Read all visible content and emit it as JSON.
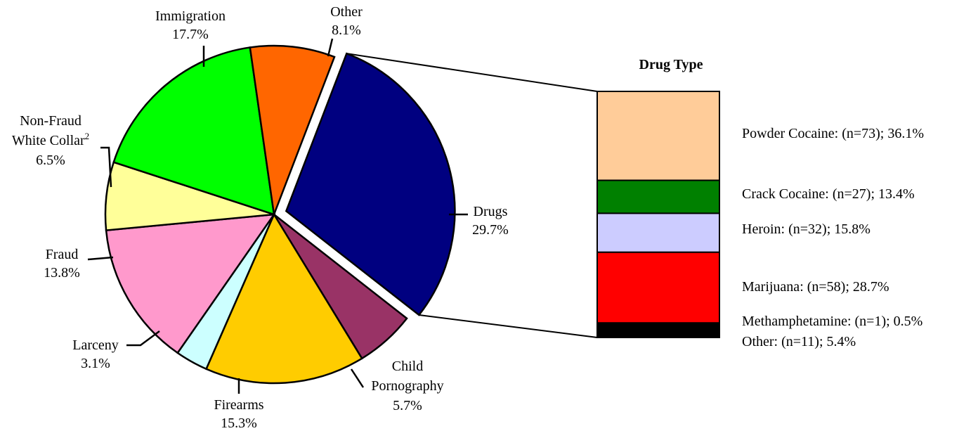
{
  "chart_data": [
    {
      "type": "pie",
      "slices": [
        {
          "label": "Drugs",
          "value": 29.7,
          "value_label": "29.7%",
          "color": "#000080",
          "exploded": true
        },
        {
          "label": "Child Pornography",
          "label_lines": [
            "Child",
            "Pornography"
          ],
          "value": 5.7,
          "value_label": "5.7%",
          "color": "#993366"
        },
        {
          "label": "Firearms",
          "value": 15.3,
          "value_label": "15.3%",
          "color": "#FFCC00"
        },
        {
          "label": "Larceny",
          "value": 3.1,
          "value_label": "3.1%",
          "color": "#CCFFFF"
        },
        {
          "label": "Fraud",
          "value": 13.8,
          "value_label": "13.8%",
          "color": "#FF99CC"
        },
        {
          "label": "Non-Fraud White Collar",
          "label_lines": [
            "Non-Fraud",
            "White Collar"
          ],
          "superscript": "2",
          "value": 6.5,
          "value_label": "6.5%",
          "color": "#FFFF99"
        },
        {
          "label": "Immigration",
          "value": 17.7,
          "value_label": "17.7%",
          "color": "#00FF00"
        },
        {
          "label": "Other",
          "value": 8.1,
          "value_label": "8.1%",
          "color": "#FF6600"
        }
      ]
    },
    {
      "type": "bar",
      "stacked": true,
      "title": "Drug Type",
      "segments": [
        {
          "name": "Powder Cocaine",
          "n_text": "(n=73)",
          "value": 36.1,
          "value_label": "36.1%",
          "color": "#FFCC99"
        },
        {
          "name": "Crack Cocaine",
          "n_text": "(n=27)",
          "value": 13.4,
          "value_label": "13.4%",
          "color": "#008000"
        },
        {
          "name": "Heroin",
          "n_text": "(n=32)",
          "value": 15.8,
          "value_label": "15.8%",
          "color": "#CCCCFF"
        },
        {
          "name": "Marijuana",
          "n_text": "(n=58)",
          "value": 28.7,
          "value_label": "28.7%",
          "color": "#FF0000"
        },
        {
          "name": "Methamphetamine",
          "n_text": "(n=1)",
          "value": 0.5,
          "value_label": "0.5%",
          "color": "#FFFFFF"
        },
        {
          "name": "Other",
          "n_text": "(n=11)",
          "value": 5.4,
          "value_label": "5.4%",
          "color": "#000000"
        }
      ]
    }
  ]
}
